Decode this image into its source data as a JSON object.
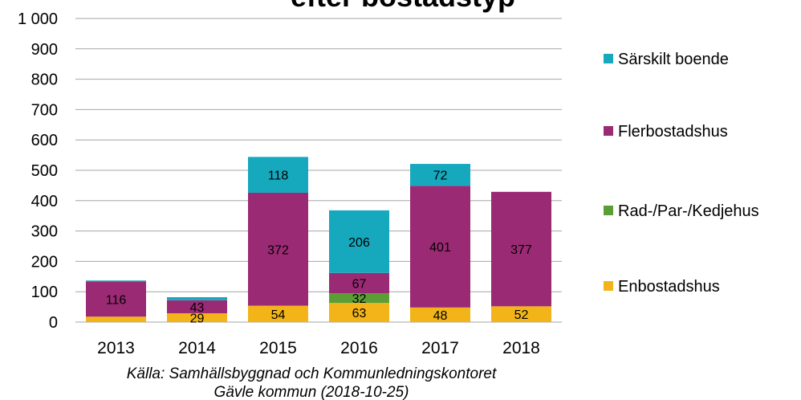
{
  "chart_data": {
    "type": "stacked_bar",
    "title": "efter bostadstyp",
    "source": [
      "Källa:  Samhällsbyggnad  och Kommunledningskontoret",
      "Gävle kommun (2018-10-25)"
    ],
    "categories": [
      "2013",
      "2014",
      "2015",
      "2016",
      "2017",
      "2018"
    ],
    "series": [
      {
        "name": "Enbostadshus",
        "color": "#f2b418",
        "values": [
          18,
          29,
          54,
          63,
          48,
          52
        ]
      },
      {
        "name": "Rad-/Par-/Kedjehus",
        "color": "#5b9e35",
        "values": [
          null,
          null,
          null,
          32,
          null,
          null
        ]
      },
      {
        "name": "Flerbostadshus",
        "color": "#9b2a74",
        "values": [
          116,
          43,
          372,
          67,
          401,
          377
        ]
      },
      {
        "name": "Särskilt boende",
        "color": "#16a8bd",
        "values": [
          3,
          10,
          118,
          206,
          72,
          null
        ]
      }
    ],
    "ylim": [
      0,
      1000
    ],
    "yticks": [
      0,
      100,
      200,
      300,
      400,
      500,
      600,
      700,
      800,
      900,
      {
        "value": 1000,
        "label": "1 000"
      }
    ],
    "grid": true,
    "legend": "right"
  }
}
